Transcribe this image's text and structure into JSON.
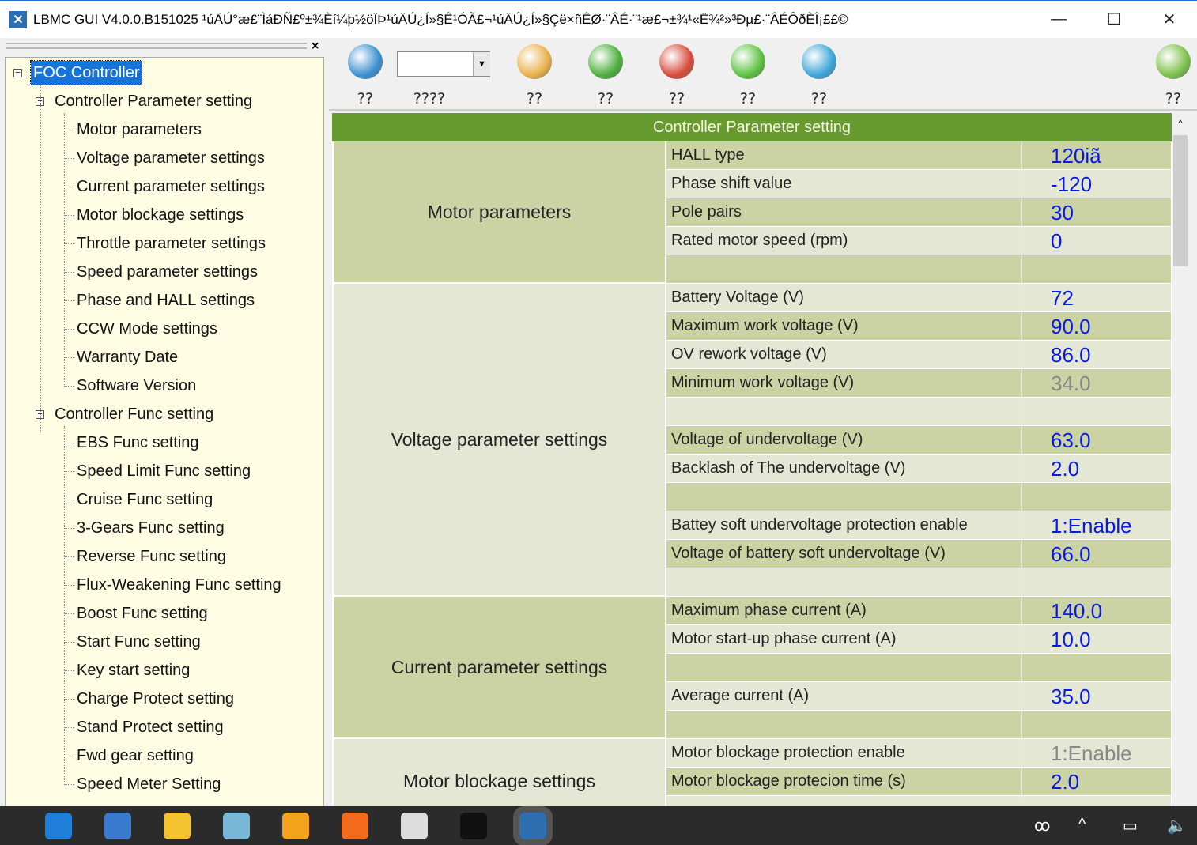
{
  "window": {
    "title": "LBMC GUI V4.0.0.B151025 ¹úÄÚ°æ£¨ÌáÐÑ£º±¾Èí¼þ½öÏÞ¹úÄÚ¿Í»§Ê¹ÓÃ£¬¹úÄÚ¿Í»§Çë×ñÊØ·¨ÂÉ·¨¹æ£¬±¾¹«Ë¾²»³Ðµ£·¨ÂÉÔðÈÎ¡££©",
    "minimize": "—",
    "maximize": "☐",
    "close": "✕"
  },
  "sidebar": {
    "close": "×",
    "root": "FOC Controller",
    "groups": [
      {
        "label": "Controller Parameter setting",
        "items": [
          "Motor parameters",
          "Voltage parameter settings",
          "Current parameter settings",
          "Motor blockage settings",
          "Throttle parameter settings",
          "Speed parameter settings",
          "Phase and HALL settings",
          "CCW Mode settings",
          "Warranty Date",
          "Software Version"
        ]
      },
      {
        "label": "Controller Func setting",
        "items": [
          "EBS Func setting",
          "Speed Limit Func setting",
          "Cruise Func setting",
          "3-Gears Func setting",
          "Reverse Func setting",
          "Flux-Weakening Func setting",
          "Boost Func setting",
          "Start Func setting",
          "Key start setting",
          "Charge Protect setting",
          "Stand Protect setting",
          "Fwd gear setting",
          "Speed Meter Setting"
        ]
      }
    ]
  },
  "toolbar": {
    "buttons": [
      {
        "label": "??",
        "icon": "globe-connect-icon"
      },
      {
        "label": "????",
        "icon": "combo"
      },
      {
        "label": "??",
        "icon": "upload-drive-icon"
      },
      {
        "label": "??",
        "icon": "download-drive-icon"
      },
      {
        "label": "??",
        "icon": "pie-chart-icon"
      },
      {
        "label": "??",
        "icon": "download-disk-icon"
      },
      {
        "label": "??",
        "icon": "upload-disk-icon"
      },
      {
        "label": "??",
        "icon": "user-icon"
      }
    ],
    "combo_value": ""
  },
  "table": {
    "header": "Controller Parameter setting",
    "sections": [
      {
        "name": "Motor parameters",
        "rows": [
          [
            "HALL type",
            "120iã"
          ],
          [
            "Phase shift value",
            "-120"
          ],
          [
            "Pole pairs",
            "30"
          ],
          [
            "Rated motor speed (rpm)",
            "0"
          ],
          [
            "",
            ""
          ]
        ]
      },
      {
        "name": "Voltage parameter settings",
        "rows": [
          [
            "Battery Voltage (V)",
            "72"
          ],
          [
            "Maximum work voltage (V)",
            "90.0"
          ],
          [
            "OV rework voltage (V)",
            "86.0"
          ],
          [
            "Minimum work voltage (V)",
            "34.0",
            "grey"
          ],
          [
            "",
            ""
          ],
          [
            "Voltage of undervoltage (V)",
            "63.0"
          ],
          [
            "Backlash of The undervoltage (V)",
            "2.0"
          ],
          [
            "",
            ""
          ],
          [
            "Battey soft undervoltage protection enable",
            "1:Enable"
          ],
          [
            "Voltage of battery soft undervoltage (V)",
            "66.0"
          ],
          [
            "",
            ""
          ]
        ]
      },
      {
        "name": "Current parameter settings",
        "rows": [
          [
            "Maximum phase current (A)",
            "140.0"
          ],
          [
            "Motor start-up phase current (A)",
            "10.0"
          ],
          [
            "",
            ""
          ],
          [
            "Average current (A)",
            "35.0"
          ],
          [
            "",
            ""
          ]
        ]
      },
      {
        "name": "Motor blockage settings",
        "rows": [
          [
            "Motor blockage protection enable",
            "1:Enable",
            "grey"
          ],
          [
            "Motor blockage protecion time (s)",
            "2.0"
          ],
          [
            "",
            ""
          ]
        ]
      }
    ]
  },
  "colors": {
    "header": "#679b2f",
    "value": "#0a18e6",
    "disabled": "#888888",
    "row_dark": "#cbd3a4",
    "row_light": "#e4e7d3"
  },
  "taskbar": {
    "apps": [
      "edge-icon",
      "thunderbird-icon",
      "file-explorer-icon",
      "notepad-icon",
      "tool-icon",
      "firefox-icon",
      "calculator-icon",
      "cmd-icon",
      "lbmc-icon"
    ],
    "tray": [
      "people-icon",
      "chevron-up-icon",
      "battery-icon",
      "volume-icon"
    ]
  }
}
